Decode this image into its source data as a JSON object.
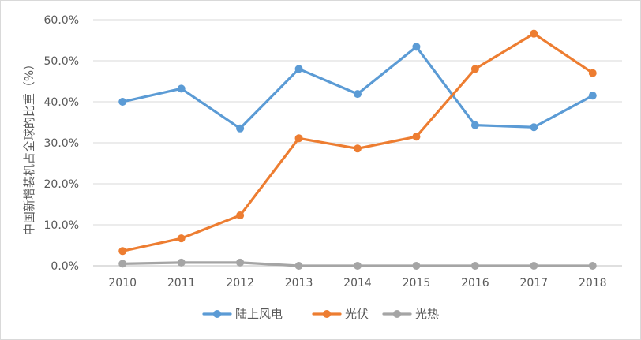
{
  "chart_data": {
    "type": "line",
    "x": [
      "2010",
      "2011",
      "2012",
      "2013",
      "2014",
      "2015",
      "2016",
      "2017",
      "2018"
    ],
    "ylabel": "中国新增装机占全球的比重（%）",
    "ylim": [
      0,
      60
    ],
    "yticks": [
      "0.0%",
      "10.0%",
      "20.0%",
      "30.0%",
      "40.0%",
      "50.0%",
      "60.0%"
    ],
    "grid": true,
    "legend": "bottom",
    "series": [
      {
        "name": "陆上风电",
        "color": "#5b9bd5",
        "values": [
          40.0,
          43.2,
          33.5,
          48.0,
          41.9,
          53.4,
          34.3,
          33.8,
          41.5
        ]
      },
      {
        "name": "光伏",
        "color": "#ed7d31",
        "values": [
          3.6,
          6.7,
          12.3,
          31.1,
          28.6,
          31.5,
          48.0,
          56.6,
          47.0
        ]
      },
      {
        "name": "光热",
        "color": "#a5a5a5",
        "values": [
          0.5,
          0.8,
          0.8,
          0.0,
          0.0,
          0.0,
          0.0,
          0.0,
          0.0
        ]
      }
    ]
  }
}
